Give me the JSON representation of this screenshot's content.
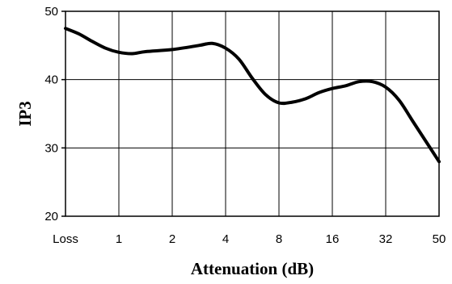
{
  "chart_data": {
    "type": "line",
    "title": "",
    "xlabel": "Attenuation (dB)",
    "ylabel": "IP3",
    "categories": [
      "Loss",
      "1",
      "2",
      "4",
      "8",
      "16",
      "32",
      "50"
    ],
    "ylim": [
      20,
      50
    ],
    "yticks": [
      "20",
      "30",
      "40",
      "50"
    ],
    "grid": true,
    "legend": "none",
    "series": [
      {
        "name": "",
        "color": "#000000",
        "x": [
          0,
          0.25,
          0.5,
          0.75,
          1,
          1.25,
          1.5,
          2,
          2.5,
          2.75,
          3,
          3.25,
          3.5,
          3.75,
          4,
          4.25,
          4.5,
          4.75,
          5,
          5.25,
          5.5,
          5.75,
          6,
          6.25,
          6.5,
          6.75,
          7
        ],
        "values": [
          47.5,
          46.7,
          45.6,
          44.6,
          44.0,
          43.8,
          44.1,
          44.4,
          45.0,
          45.3,
          44.6,
          43.0,
          40.2,
          37.8,
          36.6,
          36.7,
          37.2,
          38.1,
          38.7,
          39.1,
          39.7,
          39.7,
          38.9,
          37.0,
          34.0,
          31.0,
          28.0
        ]
      }
    ]
  }
}
